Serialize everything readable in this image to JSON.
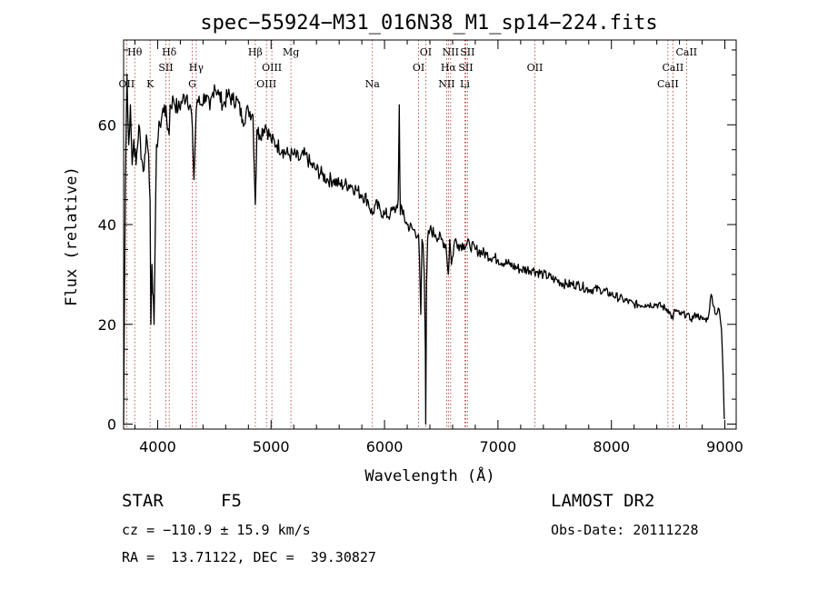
{
  "info": {
    "object_class": "STAR",
    "subclass": "F5",
    "survey": "LAMOST DR2",
    "redshift_text": "cz = −110.9 ± 15.9 km/s",
    "obs_date_text": "Obs-Date: 20111228",
    "coords_text": "RA =  13.71122, DEC =  39.30827"
  },
  "chart_data": {
    "type": "line",
    "title": "spec−55924−M31_016N38_M1_sp14−224.fits",
    "xlabel": "Wavelength (Å)",
    "ylabel": "Flux (relative)",
    "xlim": [
      3700,
      9100
    ],
    "ylim": [
      -1,
      77
    ],
    "xticks": [
      4000,
      5000,
      6000,
      7000,
      8000,
      9000
    ],
    "yticks": [
      0,
      20,
      40,
      60
    ],
    "colors": {
      "spectrum": "#000000",
      "lines": "#b03030"
    },
    "spectrum": {
      "x": [
        3700,
        3715,
        3730,
        3745,
        3760,
        3775,
        3790,
        3810,
        3835,
        3860,
        3880,
        3900,
        3920,
        3933,
        3940,
        3950,
        3968,
        3975,
        3990,
        4020,
        4060,
        4101,
        4110,
        4140,
        4180,
        4220,
        4260,
        4300,
        4320,
        4340,
        4350,
        4380,
        4420,
        4460,
        4500,
        4540,
        4580,
        4620,
        4660,
        4700,
        4750,
        4800,
        4840,
        4861,
        4875,
        4900,
        4950,
        5000,
        5050,
        5100,
        5150,
        5200,
        5250,
        5300,
        5350,
        5400,
        5450,
        5500,
        5550,
        5600,
        5650,
        5700,
        5750,
        5800,
        5850,
        5893,
        5920,
        5960,
        6000,
        6050,
        6080,
        6100,
        6120,
        6130,
        6135,
        6140,
        6145,
        6160,
        6200,
        6250,
        6300,
        6320,
        6330,
        6340,
        6350,
        6360,
        6363,
        6370,
        6380,
        6400,
        6450,
        6500,
        6540,
        6563,
        6575,
        6590,
        6620,
        6650,
        6700,
        6750,
        6800,
        6900,
        7000,
        7100,
        7200,
        7300,
        7400,
        7500,
        7600,
        7700,
        7800,
        7900,
        8000,
        8100,
        8200,
        8300,
        8400,
        8500,
        8542,
        8560,
        8600,
        8662,
        8700,
        8750,
        8800,
        8850,
        8880,
        8920,
        8950,
        8970,
        8985,
        8995
      ],
      "y": [
        0,
        48,
        70,
        56,
        64,
        52,
        57,
        52,
        60,
        53,
        51,
        58,
        54,
        45,
        20,
        32,
        20,
        31,
        56,
        60,
        64,
        58,
        64,
        65,
        63,
        65,
        66,
        62,
        49,
        63,
        65,
        64,
        66,
        63,
        68,
        66,
        64,
        66,
        65,
        65,
        61,
        63,
        62,
        44,
        59,
        58,
        60,
        57,
        56,
        55,
        54,
        54,
        53,
        54,
        52,
        51,
        50,
        49,
        49,
        48,
        48,
        48,
        47,
        46,
        45,
        42,
        44,
        43,
        42,
        42,
        43,
        43,
        45,
        64,
        50,
        42,
        44,
        42,
        40,
        39,
        38,
        22,
        37,
        36,
        30,
        15,
        0,
        28,
        37,
        39,
        38,
        37,
        36,
        30,
        37,
        32,
        37,
        36,
        36,
        36,
        35,
        34,
        33,
        32,
        31,
        31,
        30,
        29,
        28,
        28,
        27,
        27,
        26,
        25,
        24,
        24,
        24,
        23,
        21,
        23,
        22,
        22,
        21,
        22,
        21,
        21,
        26,
        22,
        23,
        19,
        10,
        1
      ]
    },
    "lines": [
      {
        "label": "Hθ",
        "x": 3798,
        "row": 0
      },
      {
        "label": "Hδ",
        "x": 4102,
        "row": 0
      },
      {
        "label": "Hβ",
        "x": 4861,
        "row": 0
      },
      {
        "label": "Mg",
        "x": 5175,
        "row": 0
      },
      {
        "label": "OI",
        "x": 6363,
        "row": 0
      },
      {
        "label": "NII",
        "x": 6583,
        "row": 0
      },
      {
        "label": "SII",
        "x": 6731,
        "row": 0
      },
      {
        "label": "CaII",
        "x": 8662,
        "row": 0
      },
      {
        "label": "SII",
        "x": 4072,
        "row": 1
      },
      {
        "label": "Hγ",
        "x": 4340,
        "row": 1
      },
      {
        "label": "OIII",
        "x": 5007,
        "row": 1
      },
      {
        "label": "OI",
        "x": 6300,
        "row": 1
      },
      {
        "label": "Hα",
        "x": 6563,
        "row": 1
      },
      {
        "label": "SII",
        "x": 6716,
        "row": 1
      },
      {
        "label": "OII",
        "x": 7325,
        "row": 1
      },
      {
        "label": "CaII",
        "x": 8542,
        "row": 1
      },
      {
        "label": "OII",
        "x": 3727,
        "row": 2
      },
      {
        "label": "K",
        "x": 3934,
        "row": 2
      },
      {
        "label": "G",
        "x": 4305,
        "row": 2
      },
      {
        "label": "OIII",
        "x": 4959,
        "row": 2
      },
      {
        "label": "Na",
        "x": 5893,
        "row": 2
      },
      {
        "label": "NII",
        "x": 6548,
        "row": 2
      },
      {
        "label": "Li",
        "x": 6708,
        "row": 2
      },
      {
        "label": "CaII",
        "x": 8498,
        "row": 2
      }
    ]
  }
}
